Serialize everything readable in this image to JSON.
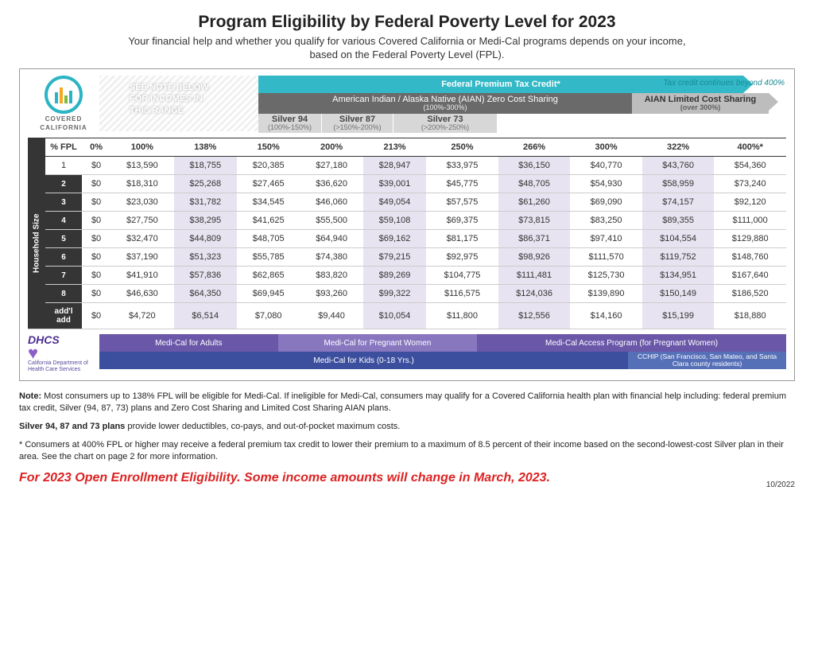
{
  "header": {
    "title": "Program Eligibility by Federal Poverty Level for 2023",
    "subtitle1": "Your financial help and whether you qualify for various Covered California or Medi-Cal programs depends on your income,",
    "subtitle2": "based on the Federal Poverty Level (FPL)."
  },
  "logo": {
    "line1": "COVERED",
    "line2": "CALIFORNIA"
  },
  "see_note": {
    "line1": "SEE NOTE BELOW",
    "line2": "FOR INCOMES IN",
    "line3": "THIS RANGE"
  },
  "bands": {
    "fed_tax": "Federal Premium Tax Credit*",
    "fed_tax_cont": "Tax credit continues beyond 400%",
    "aian_zero": "American Indian / Alaska Native (AIAN) Zero Cost Sharing",
    "aian_zero_sub": "(100%-300%)",
    "aian_limited": "AIAN Limited Cost Sharing",
    "aian_limited_sub": "(over 300%)",
    "silver94": "Silver 94",
    "silver94_sub": "(100%-150%)",
    "silver87": "Silver 87",
    "silver87_sub": "(>150%-200%)",
    "silver73": "Silver 73",
    "silver73_sub": "(>200%-250%)"
  },
  "colors": {
    "teal": "#32b8c6",
    "teal_light": "#6fd0d8",
    "gray_dark": "#6a6a6a",
    "gray_med": "#9a9a9a",
    "gray_light": "#d7d7d7",
    "purple_tint": "#e8e3f0",
    "prog_purple1": "#6a57a8",
    "prog_purple2": "#8877bf",
    "prog_purple3": "#6a57a8",
    "prog_blue": "#3c4f9e",
    "prog_blue2": "#5670b8"
  },
  "table": {
    "header_label": "% FPL",
    "side_label": "Household Size",
    "columns": [
      "0%",
      "100%",
      "138%",
      "150%",
      "200%",
      "213%",
      "250%",
      "266%",
      "300%",
      "322%",
      "400%*"
    ],
    "tinted_cols": [
      2,
      5,
      7,
      9
    ],
    "row_labels": [
      "1",
      "2",
      "3",
      "4",
      "5",
      "6",
      "7",
      "8",
      "add'l add"
    ],
    "rows": [
      [
        "$0",
        "$13,590",
        "$18,755",
        "$20,385",
        "$27,180",
        "$28,947",
        "$33,975",
        "$36,150",
        "$40,770",
        "$43,760",
        "$54,360"
      ],
      [
        "$0",
        "$18,310",
        "$25,268",
        "$27,465",
        "$36,620",
        "$39,001",
        "$45,775",
        "$48,705",
        "$54,930",
        "$58,959",
        "$73,240"
      ],
      [
        "$0",
        "$23,030",
        "$31,782",
        "$34,545",
        "$46,060",
        "$49,054",
        "$57,575",
        "$61,260",
        "$69,090",
        "$74,157",
        "$92,120"
      ],
      [
        "$0",
        "$27,750",
        "$38,295",
        "$41,625",
        "$55,500",
        "$59,108",
        "$69,375",
        "$73,815",
        "$83,250",
        "$89,355",
        "$111,000"
      ],
      [
        "$0",
        "$32,470",
        "$44,809",
        "$48,705",
        "$64,940",
        "$69,162",
        "$81,175",
        "$86,371",
        "$97,410",
        "$104,554",
        "$129,880"
      ],
      [
        "$0",
        "$37,190",
        "$51,323",
        "$55,785",
        "$74,380",
        "$79,215",
        "$92,975",
        "$98,926",
        "$111,570",
        "$119,752",
        "$148,760"
      ],
      [
        "$0",
        "$41,910",
        "$57,836",
        "$62,865",
        "$83,820",
        "$89,269",
        "$104,775",
        "$111,481",
        "$125,730",
        "$134,951",
        "$167,640"
      ],
      [
        "$0",
        "$46,630",
        "$64,350",
        "$69,945",
        "$93,260",
        "$99,322",
        "$116,575",
        "$124,036",
        "$139,890",
        "$150,149",
        "$186,520"
      ],
      [
        "$0",
        "$4,720",
        "$6,514",
        "$7,080",
        "$9,440",
        "$10,054",
        "$11,800",
        "$12,556",
        "$14,160",
        "$15,199",
        "$18,880"
      ]
    ]
  },
  "dhcs": {
    "logo": "DHCS",
    "sub": "California Department of Health Care Services"
  },
  "programs": {
    "adults": "Medi-Cal for Adults",
    "pregnant": "Medi-Cal for Pregnant Women",
    "access": "Medi-Cal Access Program (for Pregnant Women)",
    "kids": "Medi-Cal for Kids (0-18 Yrs.)",
    "cchip": "CCHIP (San Francisco, San Mateo, and Santa Clara county residents)"
  },
  "notes": {
    "n1": "Note: Most consumers up to 138% FPL will be eligible for Medi-Cal. If ineligible for Medi-Cal, consumers may qualify for a Covered California health plan with financial help including: federal premium tax credit, Silver (94, 87, 73) plans and Zero Cost Sharing and Limited Cost Sharing AIAN plans.",
    "n2": "Silver 94, 87 and 73 plans provide lower deductibles, co-pays, and out-of-pocket maximum costs.",
    "n3": "* Consumers at 400% FPL or higher may receive a federal premium tax credit to lower their premium to a maximum of 8.5 percent of their income based on the second-lowest-cost Silver plan in their area. See the chart on page 2 for more information.",
    "enroll": "For 2023 Open Enrollment Eligibility. Some income amounts will change in March, 2023.",
    "date": "10/2022"
  }
}
